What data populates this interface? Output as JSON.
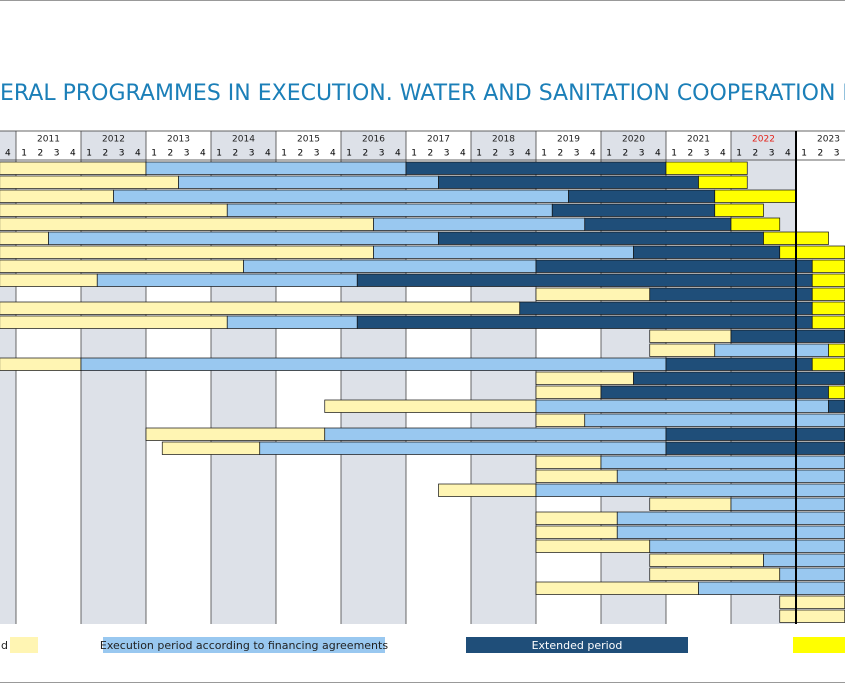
{
  "chart_data": {
    "type": "gantt",
    "title": "ERAL PROGRAMMES IN EXECUTION. WATER AND SANITATION COOPERATION FUN",
    "years": [
      "2011",
      "2012",
      "2013",
      "2014",
      "2015",
      "2016",
      "2017",
      "2018",
      "2019",
      "2020",
      "2021",
      "2022",
      "2023"
    ],
    "highlight_year_index": 11,
    "highlight_color": "#e3241b",
    "quarters": [
      "1",
      "2",
      "3",
      "4"
    ],
    "xlim": [
      2010.75,
      2023.75
    ],
    "shaded_years": [
      2010,
      2012,
      2014,
      2016,
      2018,
      2020,
      2022
    ],
    "today_line": 2023.0,
    "series": [
      {
        "name": "d",
        "color": "#fff5b3"
      },
      {
        "name": "Execution period according to financing agreements",
        "color": "#99c8f0"
      },
      {
        "name": "Extended period",
        "color": "#1f4e79"
      },
      {
        "name": null,
        "color": "#ffff00"
      }
    ],
    "tasks": [
      [
        [
          0,
          2010.75,
          2013.0
        ],
        [
          1,
          2013.0,
          2017.0
        ],
        [
          2,
          2017.0,
          2021.0
        ],
        [
          3,
          2021.0,
          2022.25
        ]
      ],
      [
        [
          0,
          2010.75,
          2013.5
        ],
        [
          1,
          2013.5,
          2017.5
        ],
        [
          2,
          2017.5,
          2021.5
        ],
        [
          3,
          2021.5,
          2022.25
        ]
      ],
      [
        [
          0,
          2010.75,
          2012.5
        ],
        [
          1,
          2012.5,
          2019.5
        ],
        [
          2,
          2019.5,
          2021.75
        ],
        [
          3,
          2021.75,
          2023.0
        ]
      ],
      [
        [
          0,
          2010.75,
          2014.25
        ],
        [
          1,
          2014.25,
          2019.25
        ],
        [
          2,
          2019.25,
          2021.75
        ],
        [
          3,
          2021.75,
          2022.5
        ]
      ],
      [
        [
          0,
          2010.75,
          2016.5
        ],
        [
          1,
          2016.5,
          2019.75
        ],
        [
          2,
          2019.75,
          2022.0
        ],
        [
          3,
          2022.0,
          2022.75
        ]
      ],
      [
        [
          0,
          2010.75,
          2011.5
        ],
        [
          1,
          2011.5,
          2017.5
        ],
        [
          2,
          2017.5,
          2022.5
        ],
        [
          3,
          2022.5,
          2023.5
        ]
      ],
      [
        [
          0,
          2010.75,
          2016.5
        ],
        [
          1,
          2016.5,
          2020.5
        ],
        [
          2,
          2020.5,
          2022.75
        ],
        [
          3,
          2022.75,
          2023.75
        ]
      ],
      [
        [
          0,
          2010.75,
          2014.5
        ],
        [
          1,
          2014.5,
          2019.0
        ],
        [
          2,
          2019.0,
          2023.25
        ],
        [
          3,
          2023.25,
          2023.75
        ]
      ],
      [
        [
          0,
          2010.75,
          2012.25
        ],
        [
          1,
          2012.25,
          2016.25
        ],
        [
          2,
          2016.25,
          2023.25
        ],
        [
          3,
          2023.25,
          2023.75
        ]
      ],
      [
        [
          0,
          2019.0,
          2020.75
        ],
        [
          2,
          2020.75,
          2023.25
        ],
        [
          3,
          2023.25,
          2023.75
        ]
      ],
      [
        [
          0,
          2010.75,
          2018.75
        ],
        [
          2,
          2018.75,
          2023.25
        ],
        [
          3,
          2023.25,
          2023.75
        ]
      ],
      [
        [
          0,
          2010.75,
          2014.25
        ],
        [
          1,
          2014.25,
          2016.25
        ],
        [
          2,
          2016.25,
          2023.25
        ],
        [
          3,
          2023.25,
          2023.75
        ]
      ],
      [
        [
          0,
          2020.75,
          2022.0
        ],
        [
          2,
          2022.0,
          2023.75
        ]
      ],
      [
        [
          0,
          2020.75,
          2021.75
        ],
        [
          1,
          2021.75,
          2023.5
        ],
        [
          3,
          2023.5,
          2023.75
        ]
      ],
      [
        [
          0,
          2010.75,
          2012.0
        ],
        [
          1,
          2012.0,
          2021.0
        ],
        [
          2,
          2021.0,
          2023.25
        ],
        [
          3,
          2023.25,
          2023.75
        ]
      ],
      [
        [
          0,
          2019.0,
          2020.5
        ],
        [
          2,
          2020.5,
          2023.75
        ]
      ],
      [
        [
          0,
          2019.0,
          2020.0
        ],
        [
          2,
          2020.0,
          2023.5
        ],
        [
          3,
          2023.5,
          2023.75
        ]
      ],
      [
        [
          0,
          2015.75,
          2019.0
        ],
        [
          1,
          2019.0,
          2023.5
        ],
        [
          2,
          2023.5,
          2023.75
        ]
      ],
      [
        [
          0,
          2019.0,
          2019.75
        ],
        [
          1,
          2019.75,
          2023.75
        ]
      ],
      [
        [
          0,
          2013.0,
          2015.75
        ],
        [
          1,
          2015.75,
          2021.0
        ],
        [
          2,
          2021.0,
          2023.75
        ]
      ],
      [
        [
          0,
          2013.25,
          2014.75
        ],
        [
          1,
          2014.75,
          2021.0
        ],
        [
          2,
          2021.0,
          2023.75
        ]
      ],
      [
        [
          0,
          2019.0,
          2020.0
        ],
        [
          1,
          2020.0,
          2023.75
        ]
      ],
      [
        [
          0,
          2019.0,
          2020.25
        ],
        [
          1,
          2020.25,
          2023.75
        ]
      ],
      [
        [
          0,
          2017.5,
          2019.0
        ],
        [
          1,
          2019.0,
          2023.75
        ]
      ],
      [
        [
          0,
          2020.75,
          2022.0
        ],
        [
          1,
          2022.0,
          2023.75
        ]
      ],
      [
        [
          0,
          2019.0,
          2020.25
        ],
        [
          1,
          2020.25,
          2023.75
        ]
      ],
      [
        [
          0,
          2019.0,
          2020.25
        ],
        [
          1,
          2020.25,
          2023.75
        ]
      ],
      [
        [
          0,
          2019.0,
          2020.75
        ],
        [
          1,
          2020.75,
          2023.75
        ]
      ],
      [
        [
          0,
          2020.75,
          2022.5
        ],
        [
          1,
          2022.5,
          2023.75
        ]
      ],
      [
        [
          0,
          2020.75,
          2022.75
        ],
        [
          1,
          2022.75,
          2023.75
        ]
      ],
      [
        [
          0,
          2019.0,
          2021.5
        ],
        [
          1,
          2021.5,
          2023.75
        ]
      ],
      [
        [
          0,
          2022.75,
          2023.75
        ]
      ],
      [
        [
          0,
          2022.75,
          2023.75
        ]
      ]
    ]
  }
}
